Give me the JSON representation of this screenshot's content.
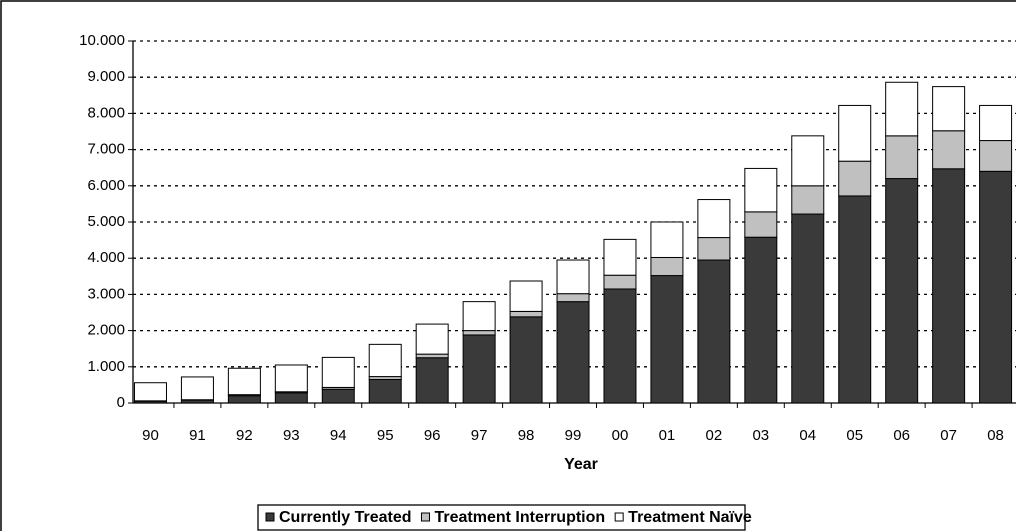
{
  "chart_data": {
    "type": "stacked_bar",
    "x_label": "Year",
    "categories": [
      "90",
      "91",
      "92",
      "93",
      "94",
      "95",
      "96",
      "97",
      "98",
      "99",
      "00",
      "01",
      "02",
      "03",
      "04",
      "05",
      "06",
      "07",
      "08"
    ],
    "series": [
      {
        "name": "Currently Treated",
        "color": "#3a3a3a",
        "values": [
          50,
          80,
          200,
          280,
          380,
          650,
          1250,
          1880,
          2380,
          2800,
          3150,
          3520,
          3950,
          4580,
          5220,
          5720,
          6200,
          6470,
          6400
        ]
      },
      {
        "name": "Treatment Interruption",
        "color": "#c0c0c0",
        "values": [
          10,
          10,
          30,
          30,
          50,
          80,
          100,
          120,
          150,
          220,
          380,
          500,
          620,
          700,
          780,
          960,
          1180,
          1050,
          850
        ]
      },
      {
        "name": "Treatment Naïve",
        "color": "#ffffff",
        "values": [
          500,
          630,
          730,
          740,
          830,
          890,
          830,
          800,
          840,
          930,
          990,
          980,
          1050,
          1200,
          1380,
          1540,
          1480,
          1220,
          970
        ]
      }
    ],
    "ylim": [
      0,
      10000
    ],
    "yticks": [
      0,
      {
        "value": 1000,
        "label": "1.000"
      },
      {
        "value": 2000,
        "label": "2.000"
      },
      {
        "value": 3000,
        "label": "3.000"
      },
      {
        "value": 4000,
        "label": "4.000"
      },
      {
        "value": 5000,
        "label": "5.000"
      },
      {
        "value": 6000,
        "label": "6.000"
      },
      {
        "value": 7000,
        "label": "7.000"
      },
      {
        "value": 8000,
        "label": "8.000"
      },
      {
        "value": 9000,
        "label": "9.000"
      },
      {
        "value": 10000,
        "label": "10.000"
      }
    ],
    "grid": true,
    "legend": "bottom"
  }
}
